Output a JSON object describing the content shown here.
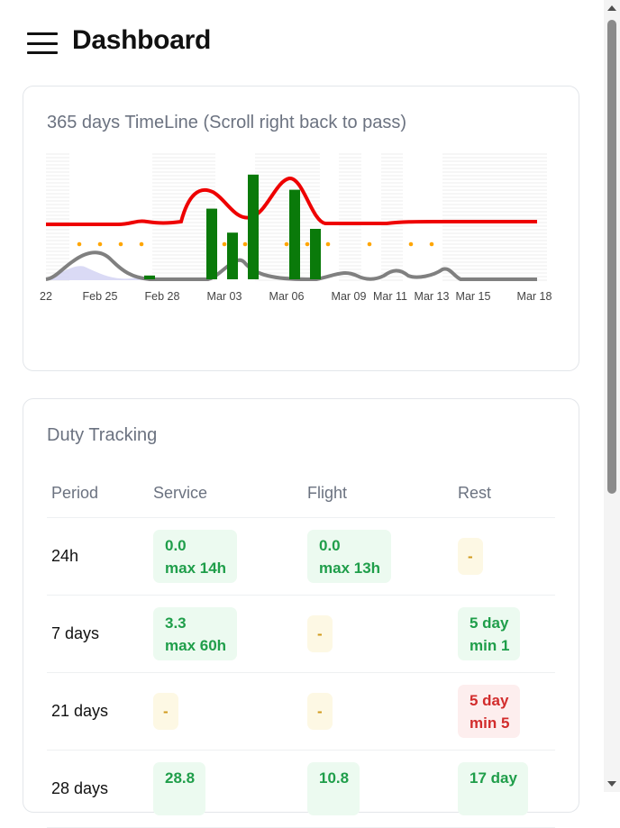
{
  "header": {
    "title": "Dashboard",
    "menu_icon": "hamburger-menu-icon"
  },
  "timeline": {
    "title": "365 days TimeLine (Scroll right back to pass)",
    "chart_data": {
      "type": "bar",
      "x_tick_labels": [
        "22",
        "Feb 25",
        "Feb 28",
        "Mar 03",
        "Mar 06",
        "Mar 09",
        "Mar 11",
        "Mar 13",
        "Mar 15",
        "Mar 18"
      ],
      "bars": [
        {
          "date": "Feb 27",
          "value": 0.03
        },
        {
          "date": "Mar 02",
          "value": 0.56
        },
        {
          "date": "Mar 03",
          "value": 0.37
        },
        {
          "date": "Mar 04",
          "value": 0.83
        },
        {
          "date": "Mar 06",
          "value": 0.71
        },
        {
          "date": "Mar 07",
          "value": 0.4
        }
      ],
      "colors": {
        "bars": "#0a7a0a",
        "red_line": "#ee0000",
        "gray_line": "#808080",
        "dots": "#ffa500",
        "area": "#c8c8ee"
      }
    }
  },
  "duty": {
    "title": "Duty Tracking",
    "columns": [
      "Period",
      "Service",
      "Flight",
      "Rest"
    ],
    "rows": [
      {
        "period": "24h",
        "service": {
          "value": "0.0",
          "limit": "max 14h",
          "status": "ok"
        },
        "flight": {
          "value": "0.0",
          "limit": "max 13h",
          "status": "ok"
        },
        "rest": {
          "value": "-",
          "status": "na"
        }
      },
      {
        "period": "7 days",
        "service": {
          "value": "3.3",
          "limit": "max 60h",
          "status": "ok"
        },
        "flight": {
          "value": "-",
          "status": "na"
        },
        "rest": {
          "value": "5 day",
          "limit": "min 1",
          "status": "ok"
        }
      },
      {
        "period": "21 days",
        "service": {
          "value": "-",
          "status": "na"
        },
        "flight": {
          "value": "-",
          "status": "na"
        },
        "rest": {
          "value": "5 day",
          "limit": "min 5",
          "status": "bad"
        }
      },
      {
        "period": "28 days",
        "service": {
          "value": "28.8",
          "limit": "",
          "status": "ok"
        },
        "flight": {
          "value": "10.8",
          "limit": "",
          "status": "ok"
        },
        "rest": {
          "value": "17 day",
          "limit": "",
          "status": "ok"
        }
      }
    ]
  }
}
